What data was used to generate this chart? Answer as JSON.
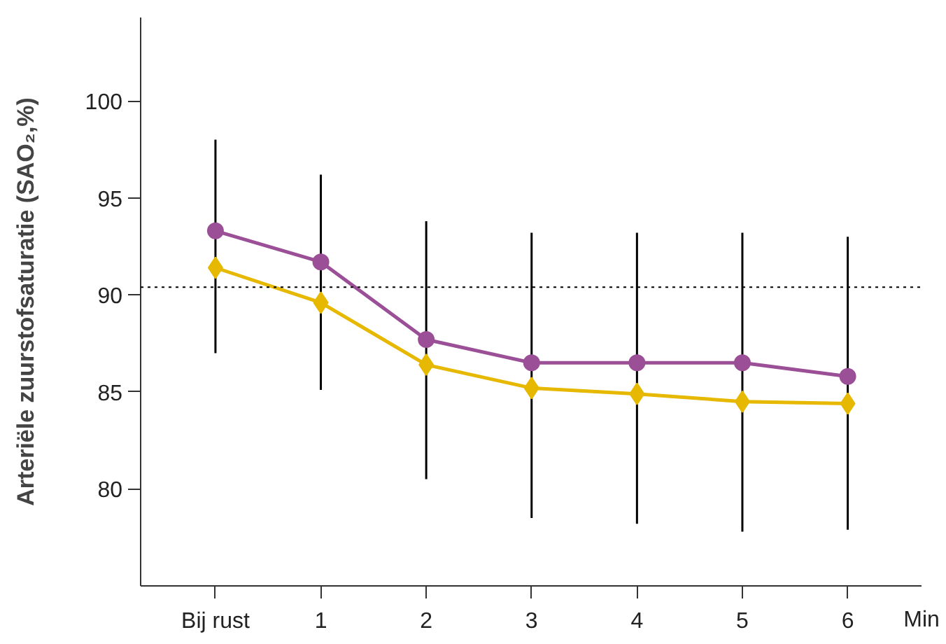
{
  "chart_data": {
    "type": "line",
    "ylabel": "Arteriële zuurstofsaturatie (SAO₂,%)",
    "xlabel": "Min",
    "categories": [
      "Bij rust",
      "1",
      "2",
      "3",
      "4",
      "5",
      "6"
    ],
    "series": [
      {
        "color": "#9b4f96",
        "marker": "circle",
        "values": [
          93.3,
          91.7,
          87.7,
          86.5,
          86.5,
          86.5,
          85.8
        ],
        "errors": [
          [
            87.0,
            98.0
          ],
          [
            85.1,
            96.2
          ],
          [
            80.5,
            93.8
          ],
          [
            78.5,
            93.2
          ],
          [
            78.2,
            93.2
          ],
          [
            77.8,
            93.2
          ],
          [
            77.9,
            93.0
          ]
        ]
      },
      {
        "color": "#e6b800",
        "marker": "diamond",
        "values": [
          91.4,
          89.6,
          86.4,
          85.2,
          84.9,
          84.5,
          84.4
        ]
      }
    ],
    "ylim": [
      75,
      104.3
    ],
    "yticks": [
      80,
      85,
      90,
      95,
      100
    ],
    "ref_lines": [
      {
        "axis": "y",
        "value": 90.4,
        "line_style": "dotted"
      }
    ],
    "grid": false
  }
}
